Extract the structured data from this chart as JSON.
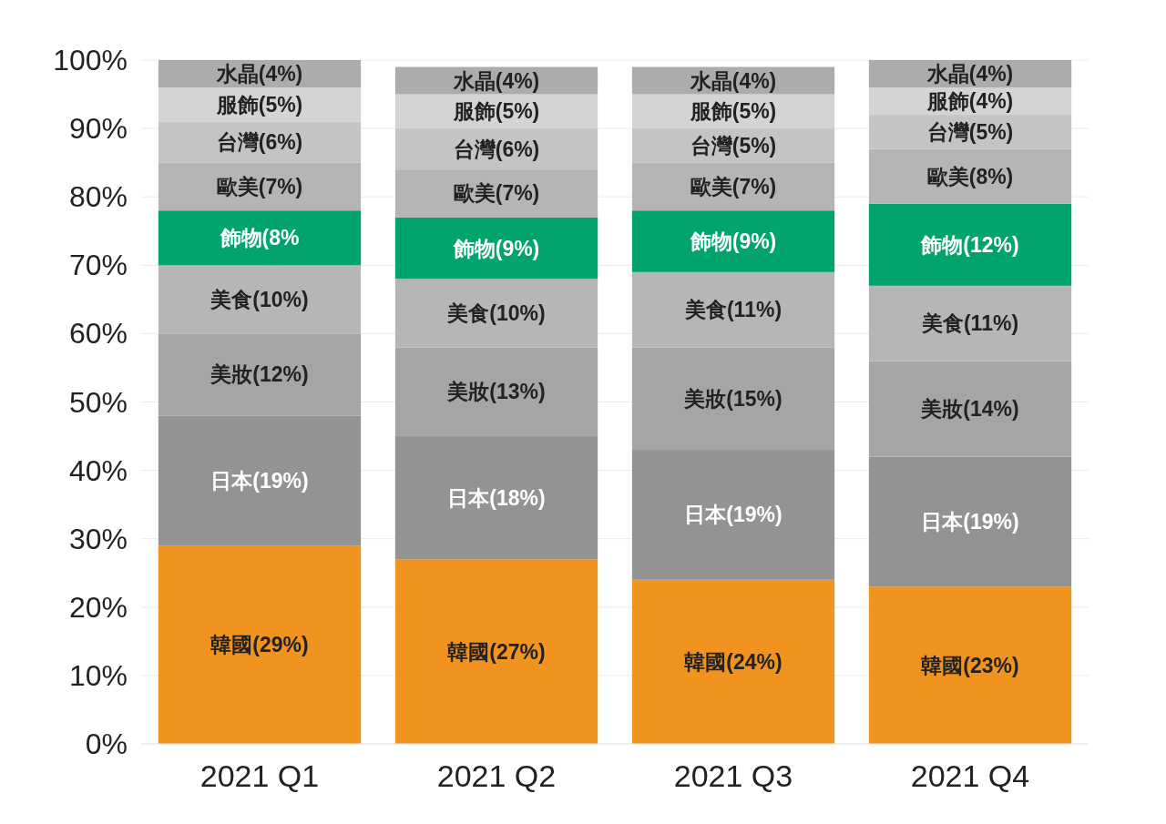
{
  "chart_data": {
    "type": "bar",
    "stacked": true,
    "categories": [
      "2021 Q1",
      "2021 Q2",
      "2021 Q3",
      "2021 Q4"
    ],
    "ylim": [
      0,
      100
    ],
    "yticks": [
      {
        "value": 0,
        "label": "0%"
      },
      {
        "value": 10,
        "label": "10%"
      },
      {
        "value": 20,
        "label": "20%"
      },
      {
        "value": 30,
        "label": "30%"
      },
      {
        "value": 40,
        "label": "40%"
      },
      {
        "value": 50,
        "label": "50%"
      },
      {
        "value": 60,
        "label": "60%"
      },
      {
        "value": 70,
        "label": "70%"
      },
      {
        "value": 80,
        "label": "80%"
      },
      {
        "value": 90,
        "label": "90%"
      },
      {
        "value": 100,
        "label": "100%"
      }
    ],
    "grid": "y",
    "series": [
      {
        "name": "韓國",
        "color": "#f0931f",
        "values": [
          29,
          27,
          24,
          23
        ],
        "value_labels": [
          "(29%)",
          "(27%)",
          "(24%)",
          "(23%)"
        ]
      },
      {
        "name": "日本",
        "color": "#939393",
        "values": [
          19,
          18,
          19,
          19
        ],
        "value_labels": [
          "(19%)",
          "(18%)",
          "(19%)",
          "(19%)"
        ]
      },
      {
        "name": "美妝",
        "color": "#a5a5a6",
        "values": [
          12,
          13,
          15,
          14
        ],
        "value_labels": [
          "(12%)",
          "(13%)",
          "(15%)",
          "(14%)"
        ]
      },
      {
        "name": "美食",
        "color": "#b6b6b7",
        "values": [
          10,
          10,
          11,
          11
        ],
        "value_labels": [
          "(10%)",
          "(10%)",
          "(11%)",
          "(11%)"
        ]
      },
      {
        "name": "飾物",
        "color": "#00a46c",
        "values": [
          8,
          9,
          9,
          12
        ],
        "value_labels": [
          "(8%",
          "(9%)",
          "(9%)",
          "(12%)"
        ]
      },
      {
        "name": "歐美",
        "color": "#b5b5b6",
        "values": [
          7,
          7,
          7,
          8
        ],
        "value_labels": [
          "(7%)",
          "(7%)",
          "(7%)",
          "(8%)"
        ]
      },
      {
        "name": "台灣",
        "color": "#c3c4c4",
        "values": [
          6,
          6,
          5,
          5
        ],
        "value_labels": [
          "(6%)",
          "(6%)",
          "(5%)",
          "(5%)"
        ]
      },
      {
        "name": "服飾",
        "color": "#d3d4d4",
        "values": [
          5,
          5,
          5,
          4
        ],
        "value_labels": [
          "(5%)",
          "(5%)",
          "(5%)",
          "(4%)"
        ]
      },
      {
        "name": "水晶",
        "color": "#acacad",
        "values": [
          4,
          4,
          4,
          4
        ],
        "value_labels": [
          "(4%)",
          "(4%)",
          "(4%)",
          "(4%)"
        ]
      }
    ]
  }
}
